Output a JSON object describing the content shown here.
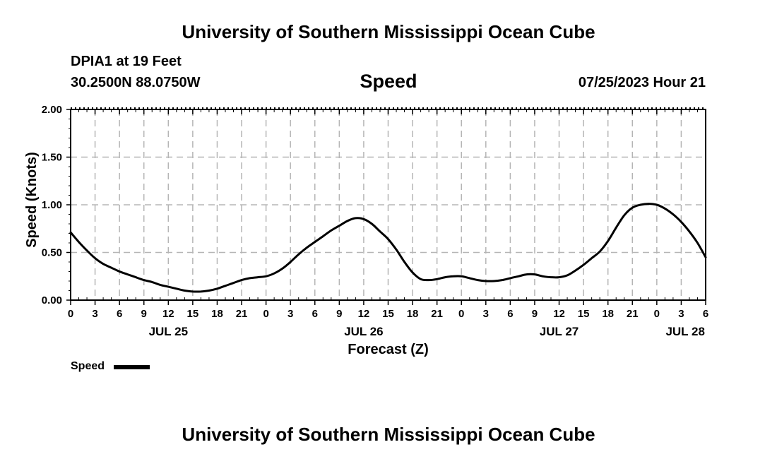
{
  "header": {
    "title": "University of Southern Mississippi Ocean Cube",
    "station": "DPIA1 at 19 Feet",
    "coords": "30.2500N  88.0750W",
    "parameter": "Speed",
    "datetime": "07/25/2023 Hour 21"
  },
  "footer": {
    "title": "University of Southern Mississippi Ocean Cube"
  },
  "legend": {
    "label": "Speed",
    "color": "#000000"
  },
  "chart_data": {
    "type": "line",
    "title": "Speed",
    "xlabel": "Forecast (Z)",
    "ylabel": "Speed (Knots)",
    "ylim": [
      0,
      2
    ],
    "xlim": [
      0,
      78
    ],
    "x_unit": "hours from JUL 25 00Z",
    "grid": true,
    "legend_position": "bottom-left",
    "y_ticks": [
      {
        "value": 0,
        "label": "0.00"
      },
      {
        "value": 0.5,
        "label": "0.50"
      },
      {
        "value": 1,
        "label": "1.00"
      },
      {
        "value": 1.5,
        "label": "1.50"
      },
      {
        "value": 2,
        "label": "2.00"
      }
    ],
    "x_ticks": [
      {
        "value": 0,
        "label": "0"
      },
      {
        "value": 3,
        "label": "3"
      },
      {
        "value": 6,
        "label": "6"
      },
      {
        "value": 9,
        "label": "9"
      },
      {
        "value": 12,
        "label": "12"
      },
      {
        "value": 15,
        "label": "15"
      },
      {
        "value": 18,
        "label": "18"
      },
      {
        "value": 21,
        "label": "21"
      },
      {
        "value": 24,
        "label": "0"
      },
      {
        "value": 27,
        "label": "3"
      },
      {
        "value": 30,
        "label": "6"
      },
      {
        "value": 33,
        "label": "9"
      },
      {
        "value": 36,
        "label": "12"
      },
      {
        "value": 39,
        "label": "15"
      },
      {
        "value": 42,
        "label": "18"
      },
      {
        "value": 45,
        "label": "21"
      },
      {
        "value": 48,
        "label": "0"
      },
      {
        "value": 51,
        "label": "3"
      },
      {
        "value": 54,
        "label": "6"
      },
      {
        "value": 57,
        "label": "9"
      },
      {
        "value": 60,
        "label": "12"
      },
      {
        "value": 63,
        "label": "15"
      },
      {
        "value": 66,
        "label": "18"
      },
      {
        "value": 69,
        "label": "21"
      },
      {
        "value": 72,
        "label": "0"
      },
      {
        "value": 75,
        "label": "3"
      },
      {
        "value": 78,
        "label": "6"
      }
    ],
    "day_labels": [
      {
        "value": 12,
        "label": "JUL 25"
      },
      {
        "value": 36,
        "label": "JUL 26"
      },
      {
        "value": 60,
        "label": "JUL 27"
      },
      {
        "value": 75.5,
        "label": "JUL 28"
      }
    ],
    "series": [
      {
        "name": "Speed",
        "x": [
          0,
          1,
          2,
          3,
          4,
          5,
          6,
          7,
          8,
          9,
          10,
          11,
          12,
          13,
          14,
          15,
          16,
          17,
          18,
          19,
          20,
          21,
          22,
          23,
          24,
          25,
          26,
          27,
          28,
          29,
          30,
          31,
          32,
          33,
          34,
          35,
          36,
          37,
          38,
          39,
          40,
          41,
          42,
          43,
          44,
          45,
          46,
          47,
          48,
          49,
          50,
          51,
          52,
          53,
          54,
          55,
          56,
          57,
          58,
          59,
          60,
          61,
          62,
          63,
          64,
          65,
          66,
          67,
          68,
          69,
          70,
          71,
          72,
          73,
          74,
          75,
          76,
          77,
          78
        ],
        "values": [
          0.71,
          0.61,
          0.52,
          0.44,
          0.38,
          0.34,
          0.3,
          0.27,
          0.24,
          0.21,
          0.19,
          0.16,
          0.14,
          0.12,
          0.1,
          0.09,
          0.09,
          0.1,
          0.12,
          0.15,
          0.18,
          0.21,
          0.23,
          0.24,
          0.25,
          0.28,
          0.33,
          0.4,
          0.48,
          0.55,
          0.61,
          0.67,
          0.73,
          0.78,
          0.83,
          0.86,
          0.85,
          0.8,
          0.72,
          0.64,
          0.53,
          0.4,
          0.29,
          0.22,
          0.21,
          0.22,
          0.24,
          0.25,
          0.25,
          0.23,
          0.21,
          0.2,
          0.2,
          0.21,
          0.23,
          0.25,
          0.27,
          0.27,
          0.25,
          0.24,
          0.24,
          0.26,
          0.31,
          0.37,
          0.44,
          0.51,
          0.62,
          0.76,
          0.89,
          0.97,
          1.0,
          1.01,
          1.0,
          0.96,
          0.9,
          0.82,
          0.72,
          0.6,
          0.45
        ]
      }
    ]
  }
}
